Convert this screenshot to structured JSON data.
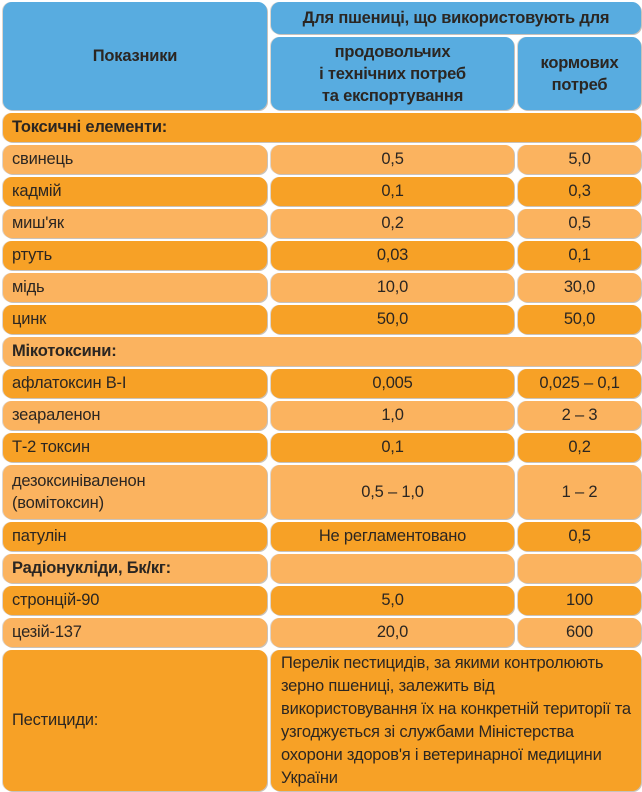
{
  "header": {
    "indicators": "Показники",
    "for_wheat": "Для пшениці, що використовують для",
    "food_l1": "продовольчих",
    "food_l2": "і технічних потреб",
    "food_l3": "та експортування",
    "feed_l1": "кормових",
    "feed_l2": "потреб"
  },
  "sections": {
    "toxic": "Токсичні елементи:",
    "myco": "Мікотоксини:",
    "radio": "Радіонукліди, Бк/кг:"
  },
  "rows": [
    {
      "name": "свинець",
      "food": "0,5",
      "feed": "5,0"
    },
    {
      "name": "кадмій",
      "food": "0,1",
      "feed": "0,3"
    },
    {
      "name": "миш'як",
      "food": "0,2",
      "feed": "0,5"
    },
    {
      "name": "ртуть",
      "food": "0,03",
      "feed": "0,1"
    },
    {
      "name": "мідь",
      "food": "10,0",
      "feed": "30,0"
    },
    {
      "name": "цинк",
      "food": "50,0",
      "feed": "50,0"
    },
    {
      "name": "афлатоксин В-І",
      "food": "0,005",
      "feed": "0,025 – 0,1"
    },
    {
      "name": "зеараленон",
      "food": "1,0",
      "feed": "2 – 3"
    },
    {
      "name": "Т-2 токсин",
      "food": "0,1",
      "feed": "0,2"
    },
    {
      "name_l1": "дезоксиніваленон",
      "name_l2": "(вомітоксин)",
      "food": "0,5 – 1,0",
      "feed": "1 – 2"
    },
    {
      "name": "патулін",
      "food": "Не регламентовано",
      "feed": "0,5"
    },
    {
      "name": "стронцій-90",
      "food": "5,0",
      "feed": "100"
    },
    {
      "name": "цезій-137",
      "food": "20,0",
      "feed": "600"
    }
  ],
  "pesticides": {
    "name": "Пестициди:",
    "text": "Перелік пестицидів, за якими контролюють зерно пшениці, залежить від використовування їх на конкретній території та узгоджується зі службами Міністерства охорони здоров'я і ветеринарної медицини України"
  },
  "colors": {
    "header": "#58ace0",
    "dark_row": "#f7a126",
    "light_row": "#fbb35f"
  }
}
